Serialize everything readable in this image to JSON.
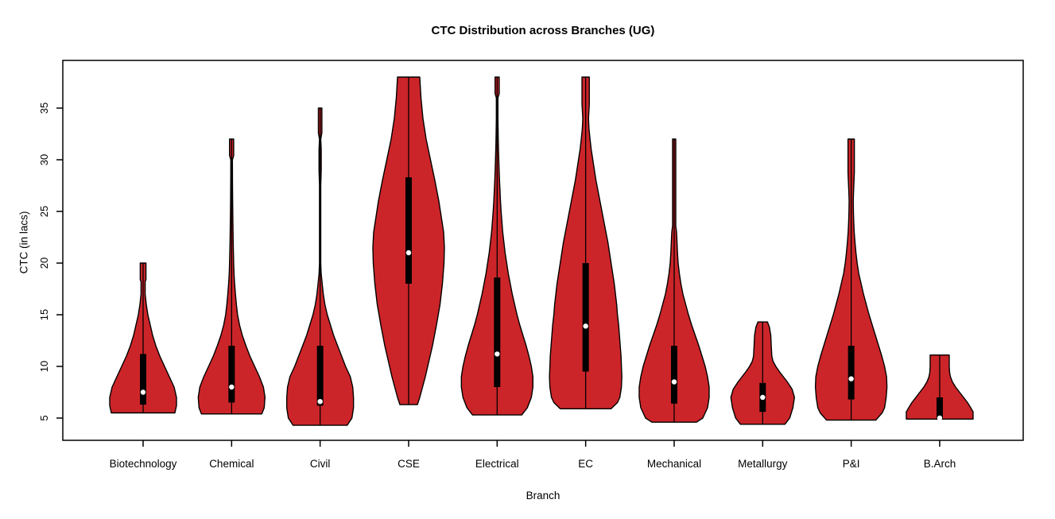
{
  "figure": {
    "background": "#ffffff"
  },
  "chart_data": {
    "type": "violin",
    "title": "CTC Distribution across Branches (UG)",
    "xlabel": "Branch",
    "ylabel": "CTC (in lacs)",
    "yticks": [
      5,
      10,
      15,
      20,
      25,
      30,
      35
    ],
    "ylim": [
      2.8,
      39.5
    ],
    "grid": false,
    "legend": "none",
    "colors": {
      "violin_fill": "#CC2529",
      "violin_outline": "#000000",
      "box": "#000000",
      "median_dot": "#ffffff",
      "axis": "#000000",
      "text": "#000000"
    },
    "categories": [
      "Biotechnology",
      "Chemical",
      "Civil",
      "CSE",
      "Electrical",
      "EC",
      "Mechanical",
      "Metallurgy",
      "P&I",
      "B.Arch"
    ],
    "series": [
      {
        "name": "Biotechnology",
        "min": 5.5,
        "max": 20,
        "q1": 6.3,
        "q3": 11.2,
        "median": 7.5,
        "profile": [
          [
            5.5,
            40
          ],
          [
            6.2,
            42
          ],
          [
            7,
            42
          ],
          [
            8,
            39
          ],
          [
            9,
            33
          ],
          [
            10,
            27
          ],
          [
            11,
            21
          ],
          [
            12,
            16
          ],
          [
            13,
            12
          ],
          [
            14,
            9
          ],
          [
            15,
            6
          ],
          [
            16,
            4
          ],
          [
            17,
            2.6
          ],
          [
            18.2,
            2.6
          ],
          [
            18.4,
            3.6
          ],
          [
            20,
            3.6
          ]
        ]
      },
      {
        "name": "Chemical",
        "min": 5.4,
        "max": 32,
        "q1": 6.5,
        "q3": 12,
        "median": 8,
        "profile": [
          [
            5.4,
            38
          ],
          [
            6,
            41
          ],
          [
            7,
            42
          ],
          [
            8,
            40
          ],
          [
            9,
            35
          ],
          [
            10,
            29
          ],
          [
            11,
            23
          ],
          [
            12,
            18
          ],
          [
            13,
            13.5
          ],
          [
            14,
            10
          ],
          [
            15,
            7.5
          ],
          [
            16,
            6
          ],
          [
            17,
            4.8
          ],
          [
            18,
            3.8
          ],
          [
            19,
            3
          ],
          [
            20,
            2.6
          ],
          [
            22,
            2
          ],
          [
            24,
            1.6
          ],
          [
            26,
            1.3
          ],
          [
            28,
            1.1
          ],
          [
            30,
            1
          ],
          [
            30.4,
            2.6
          ],
          [
            32,
            2.6
          ]
        ]
      },
      {
        "name": "Civil",
        "min": 4.3,
        "max": 35,
        "q1": 6.2,
        "q3": 12,
        "median": 6.6,
        "profile": [
          [
            4.3,
            34
          ],
          [
            5,
            40
          ],
          [
            6,
            42
          ],
          [
            7,
            42
          ],
          [
            8,
            41
          ],
          [
            9,
            38
          ],
          [
            10,
            32
          ],
          [
            11,
            27
          ],
          [
            12,
            22
          ],
          [
            13,
            17
          ],
          [
            14,
            13
          ],
          [
            15,
            9
          ],
          [
            16,
            6
          ],
          [
            17,
            4
          ],
          [
            18,
            2.6
          ],
          [
            19,
            1.3
          ],
          [
            20,
            0.8
          ],
          [
            27.5,
            0.8
          ],
          [
            29,
            1.4
          ],
          [
            31,
            1.4
          ],
          [
            32,
            0.8
          ],
          [
            32.6,
            2.2
          ],
          [
            35,
            2.2
          ]
        ]
      },
      {
        "name": "CSE",
        "min": 6.3,
        "max": 38,
        "q1": 18,
        "q3": 28.3,
        "median": 21,
        "profile": [
          [
            6.3,
            11
          ],
          [
            7,
            14
          ],
          [
            8,
            17.5
          ],
          [
            9,
            21
          ],
          [
            10,
            24
          ],
          [
            12,
            30
          ],
          [
            14,
            35
          ],
          [
            16,
            39.5
          ],
          [
            18,
            42.5
          ],
          [
            20,
            44.5
          ],
          [
            21.5,
            45
          ],
          [
            23,
            44
          ],
          [
            24,
            42
          ],
          [
            26,
            38
          ],
          [
            28,
            33
          ],
          [
            30,
            27.5
          ],
          [
            32,
            22
          ],
          [
            34,
            18
          ],
          [
            36,
            15.5
          ],
          [
            38,
            14
          ]
        ]
      },
      {
        "name": "Electrical",
        "min": 5.3,
        "max": 38,
        "q1": 8,
        "q3": 18.6,
        "median": 11.2,
        "profile": [
          [
            5.3,
            31
          ],
          [
            6,
            38
          ],
          [
            7,
            43
          ],
          [
            8,
            45
          ],
          [
            9,
            45
          ],
          [
            10,
            43
          ],
          [
            11,
            40
          ],
          [
            12,
            36.5
          ],
          [
            13,
            32.5
          ],
          [
            14,
            28.5
          ],
          [
            15,
            25
          ],
          [
            16,
            22
          ],
          [
            17,
            19
          ],
          [
            18,
            16.5
          ],
          [
            19,
            14
          ],
          [
            20,
            12
          ],
          [
            21,
            10
          ],
          [
            22,
            8.5
          ],
          [
            23,
            7
          ],
          [
            24,
            6
          ],
          [
            25,
            5
          ],
          [
            26,
            4.2
          ],
          [
            27,
            3.6
          ],
          [
            28,
            3
          ],
          [
            29,
            2.5
          ],
          [
            30,
            2.1
          ],
          [
            31,
            1.7
          ],
          [
            32,
            1.4
          ],
          [
            33,
            1.2
          ],
          [
            34,
            1
          ],
          [
            36,
            1
          ],
          [
            36.4,
            2.6
          ],
          [
            38,
            2.6
          ]
        ]
      },
      {
        "name": "EC",
        "min": 5.9,
        "max": 38,
        "q1": 9.5,
        "q3": 20,
        "median": 13.9,
        "profile": [
          [
            5.9,
            32
          ],
          [
            6.5,
            40
          ],
          [
            7,
            43
          ],
          [
            8,
            45
          ],
          [
            9,
            45.5
          ],
          [
            10,
            45
          ],
          [
            11,
            44.5
          ],
          [
            12,
            43.5
          ],
          [
            13,
            42.5
          ],
          [
            14,
            41.5
          ],
          [
            15,
            40
          ],
          [
            16,
            39
          ],
          [
            17,
            37.5
          ],
          [
            18,
            36
          ],
          [
            19,
            34
          ],
          [
            20,
            32
          ],
          [
            21,
            30
          ],
          [
            22,
            28
          ],
          [
            23,
            25.5
          ],
          [
            24,
            23
          ],
          [
            25,
            20.5
          ],
          [
            26,
            18
          ],
          [
            27,
            15.5
          ],
          [
            28,
            13
          ],
          [
            29,
            11
          ],
          [
            30,
            9
          ],
          [
            31,
            7
          ],
          [
            32,
            5.5
          ],
          [
            33,
            4.2
          ],
          [
            34,
            3.6
          ],
          [
            35.4,
            4.6
          ],
          [
            38,
            4.6
          ]
        ]
      },
      {
        "name": "Mechanical",
        "min": 4.6,
        "max": 32,
        "q1": 6.4,
        "q3": 12,
        "median": 8.5,
        "profile": [
          [
            4.6,
            28
          ],
          [
            5,
            36
          ],
          [
            6,
            42
          ],
          [
            7,
            44
          ],
          [
            8,
            44
          ],
          [
            9,
            42
          ],
          [
            10,
            39
          ],
          [
            11,
            35
          ],
          [
            12,
            31
          ],
          [
            13,
            26.5
          ],
          [
            14,
            22
          ],
          [
            15,
            18
          ],
          [
            16,
            14.5
          ],
          [
            17,
            11
          ],
          [
            18,
            8.5
          ],
          [
            19,
            6.5
          ],
          [
            20,
            5
          ],
          [
            21,
            4.2
          ],
          [
            22,
            3.6
          ],
          [
            23,
            3
          ],
          [
            23.6,
            2
          ],
          [
            32,
            2
          ]
        ]
      },
      {
        "name": "Metallurgy",
        "min": 4.4,
        "max": 14.3,
        "q1": 5.6,
        "q3": 8.4,
        "median": 7,
        "profile": [
          [
            4.4,
            28
          ],
          [
            5,
            34
          ],
          [
            6,
            38
          ],
          [
            7,
            40
          ],
          [
            7.8,
            37
          ],
          [
            8.5,
            31
          ],
          [
            9,
            26
          ],
          [
            9.5,
            21
          ],
          [
            10,
            16.5
          ],
          [
            10.5,
            13
          ],
          [
            11,
            11.5
          ],
          [
            12,
            10.8
          ],
          [
            13,
            10.2
          ],
          [
            13.8,
            8.5
          ],
          [
            14.3,
            6
          ]
        ]
      },
      {
        "name": "P&I",
        "min": 4.8,
        "max": 32,
        "q1": 6.8,
        "q3": 12,
        "median": 8.8,
        "profile": [
          [
            4.8,
            31
          ],
          [
            5.5,
            39
          ],
          [
            6,
            42
          ],
          [
            7,
            44
          ],
          [
            8,
            45
          ],
          [
            9,
            44.5
          ],
          [
            10,
            42
          ],
          [
            11,
            38.5
          ],
          [
            12,
            34.5
          ],
          [
            13,
            30.5
          ],
          [
            14,
            26.5
          ],
          [
            15,
            22.5
          ],
          [
            16,
            19
          ],
          [
            17,
            15.5
          ],
          [
            18,
            12.5
          ],
          [
            19,
            9.5
          ],
          [
            20,
            7.5
          ],
          [
            21,
            6
          ],
          [
            22,
            4.8
          ],
          [
            23,
            3.8
          ],
          [
            24,
            3.2
          ],
          [
            25,
            2.8
          ],
          [
            26,
            2.6
          ],
          [
            27,
            3
          ],
          [
            28,
            3.6
          ],
          [
            28.8,
            4
          ],
          [
            32,
            4
          ]
        ]
      },
      {
        "name": "B.Arch",
        "min": 4.9,
        "max": 11.1,
        "q1": 4.9,
        "q3": 7,
        "median": 5,
        "profile": [
          [
            4.9,
            42
          ],
          [
            5.6,
            42
          ],
          [
            6,
            39
          ],
          [
            6.5,
            35
          ],
          [
            7,
            30
          ],
          [
            7.5,
            25
          ],
          [
            8,
            20
          ],
          [
            8.5,
            16
          ],
          [
            9,
            13.5
          ],
          [
            9.4,
            12.5
          ],
          [
            10,
            12
          ],
          [
            11.1,
            12
          ]
        ]
      }
    ]
  }
}
